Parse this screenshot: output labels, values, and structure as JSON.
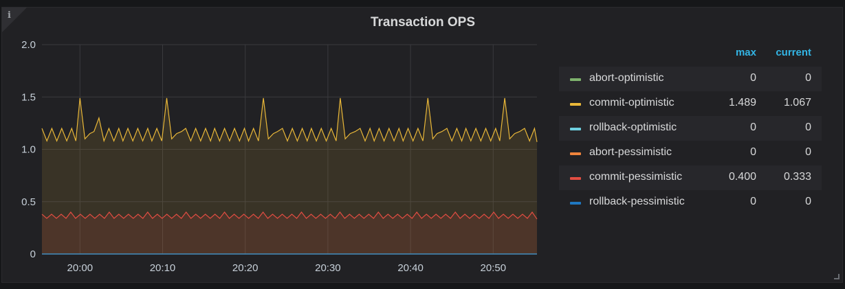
{
  "panel": {
    "title": "Transaction OPS",
    "info_icon": "info-icon",
    "resize_icon": "resize-handle-icon"
  },
  "legend": {
    "headers": {
      "max": "max",
      "current": "current"
    },
    "items": [
      {
        "label": "abort-optimistic",
        "color": "#7eb26d",
        "max": "0",
        "current": "0"
      },
      {
        "label": "commit-optimistic",
        "color": "#eab839",
        "max": "1.489",
        "current": "1.067"
      },
      {
        "label": "rollback-optimistic",
        "color": "#6ed0e0",
        "max": "0",
        "current": "0"
      },
      {
        "label": "abort-pessimistic",
        "color": "#ef843c",
        "max": "0",
        "current": "0"
      },
      {
        "label": "commit-pessimistic",
        "color": "#e24d42",
        "max": "0.400",
        "current": "0.333"
      },
      {
        "label": "rollback-pessimistic",
        "color": "#1f78c1",
        "max": "0",
        "current": "0"
      }
    ]
  },
  "chart_data": {
    "type": "area",
    "yticks": [
      "2.0",
      "1.5",
      "1.0",
      "0.5",
      "0"
    ],
    "ytick_values": [
      2.0,
      1.5,
      1.0,
      0.5,
      0
    ],
    "ylim": [
      0,
      2.0
    ],
    "xticks": [
      "20:00",
      "20:10",
      "20:20",
      "20:30",
      "20:40",
      "20:50"
    ],
    "xtick_minutes": [
      0,
      10,
      20,
      30,
      40,
      50
    ],
    "xlim_minutes": [
      -4.6,
      55.3
    ],
    "grid": true,
    "legend_placement": "right",
    "series": [
      {
        "name": "commit-optimistic",
        "color": "#eab839",
        "x_minutes": [
          -4.6,
          -4.0,
          -3.4,
          -2.8,
          -2.2,
          -1.6,
          -1.0,
          -0.5,
          0.0,
          0.6,
          1.2,
          1.7,
          2.3,
          2.9,
          3.5,
          4.1,
          4.7,
          5.2,
          5.8,
          6.4,
          7.0,
          7.6,
          8.2,
          8.7,
          9.3,
          9.9,
          10.5,
          11.1,
          11.7,
          12.3,
          12.8,
          13.4,
          14.0,
          14.6,
          15.2,
          15.8,
          16.3,
          16.9,
          17.5,
          18.1,
          18.7,
          19.3,
          19.9,
          20.4,
          21.0,
          21.6,
          22.2,
          22.8,
          23.4,
          23.9,
          24.5,
          25.1,
          25.7,
          26.3,
          26.9,
          27.5,
          28.0,
          28.6,
          29.2,
          29.8,
          30.4,
          31.0,
          31.5,
          32.1,
          32.7,
          33.3,
          33.9,
          34.5,
          35.1,
          35.6,
          36.2,
          36.8,
          37.4,
          38.0,
          38.6,
          39.1,
          39.7,
          40.3,
          40.9,
          41.5,
          42.1,
          42.7,
          43.2,
          43.8,
          44.4,
          45.0,
          45.6,
          46.2,
          46.7,
          47.3,
          47.9,
          48.5,
          49.1,
          49.7,
          50.3,
          50.8,
          51.4,
          52.0,
          52.6,
          53.2,
          53.8,
          54.4,
          55.0,
          55.3
        ],
        "values": [
          1.2,
          1.08,
          1.2,
          1.08,
          1.2,
          1.08,
          1.2,
          1.08,
          1.49,
          1.1,
          1.15,
          1.17,
          1.3,
          1.08,
          1.2,
          1.08,
          1.2,
          1.08,
          1.2,
          1.08,
          1.2,
          1.08,
          1.2,
          1.08,
          1.2,
          1.08,
          1.49,
          1.1,
          1.15,
          1.17,
          1.2,
          1.08,
          1.2,
          1.08,
          1.2,
          1.08,
          1.2,
          1.08,
          1.2,
          1.08,
          1.2,
          1.08,
          1.2,
          1.08,
          1.2,
          1.08,
          1.49,
          1.1,
          1.15,
          1.17,
          1.2,
          1.08,
          1.2,
          1.08,
          1.2,
          1.08,
          1.2,
          1.08,
          1.2,
          1.08,
          1.2,
          1.08,
          1.49,
          1.1,
          1.15,
          1.17,
          1.2,
          1.08,
          1.2,
          1.08,
          1.2,
          1.08,
          1.2,
          1.08,
          1.2,
          1.08,
          1.2,
          1.08,
          1.2,
          1.08,
          1.49,
          1.1,
          1.15,
          1.17,
          1.2,
          1.08,
          1.2,
          1.08,
          1.2,
          1.08,
          1.2,
          1.08,
          1.2,
          1.08,
          1.2,
          1.08,
          1.49,
          1.1,
          1.15,
          1.17,
          1.2,
          1.08,
          1.2,
          1.07
        ]
      },
      {
        "name": "commit-pessimistic",
        "color": "#e24d42",
        "pattern": [
          0.38,
          0.34,
          0.38,
          0.34,
          0.38,
          0.34,
          0.4,
          0.34
        ],
        "current": 0.333
      },
      {
        "name": "abort-optimistic",
        "color": "#7eb26d",
        "constant": 0
      },
      {
        "name": "rollback-optimistic",
        "color": "#6ed0e0",
        "constant": 0
      },
      {
        "name": "abort-pessimistic",
        "color": "#ef843c",
        "constant": 0
      },
      {
        "name": "rollback-pessimistic",
        "color": "#1f78c1",
        "constant": 0
      }
    ]
  }
}
